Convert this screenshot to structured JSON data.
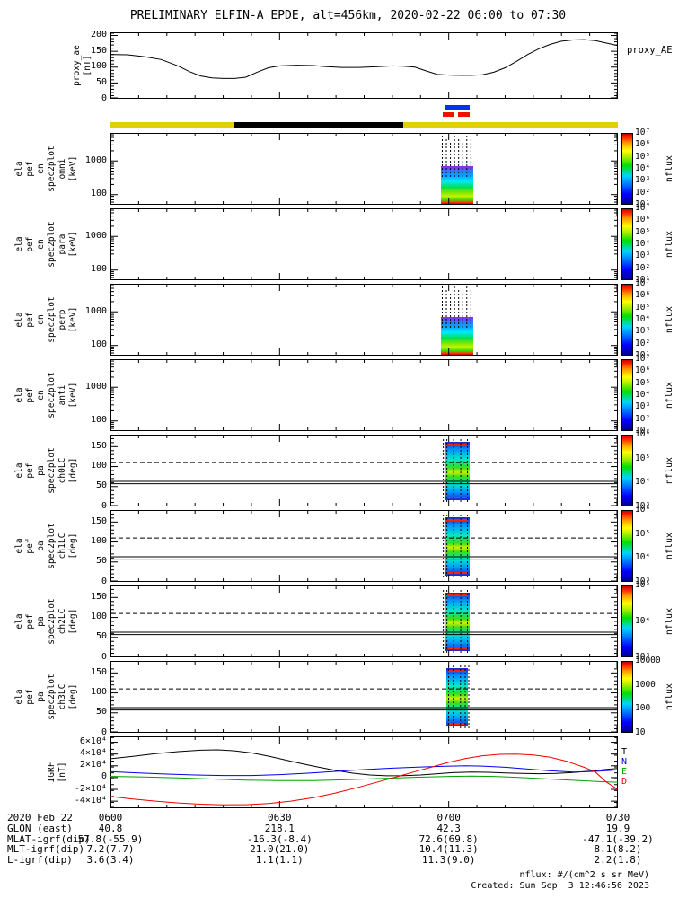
{
  "title": "PRELIMINARY ELFIN-A EPDE, alt=456km, 2020-02-22 06:00 to 07:30",
  "time_axis": {
    "range_min": [
      0,
      90
    ],
    "major_ticks": [
      {
        "min": 0,
        "label": "0600"
      },
      {
        "min": 30,
        "label": "0630"
      },
      {
        "min": 60,
        "label": "0700"
      },
      {
        "min": 90,
        "label": "0730"
      }
    ],
    "minor_step_min": 5
  },
  "status_bars": {
    "fast_blue": {
      "color": "#0033ee",
      "t_min": [
        59.3,
        63.7
      ]
    },
    "fast_red": {
      "color": "#ee1100",
      "segments_t_min": [
        [
          59.0,
          60.9
        ],
        [
          61.6,
          63.7
        ]
      ]
    },
    "survey_yellow": {
      "color": "#e0d000",
      "t_min": [
        0,
        90
      ]
    },
    "eclipse_black": {
      "color": "#000000",
      "t_min": [
        22,
        52
      ]
    }
  },
  "chart_data": [
    {
      "id": "proxy_ae",
      "type": "line",
      "label_lines": [
        "proxy_ae",
        "[nT]"
      ],
      "right_label": "proxy_AE",
      "ylim": [
        0,
        210
      ],
      "minor_step": 10,
      "yticks": [
        {
          "v": 0,
          "label": "0"
        },
        {
          "v": 50,
          "label": "50"
        },
        {
          "v": 100,
          "label": "100"
        },
        {
          "v": 150,
          "label": "150"
        },
        {
          "v": 200,
          "label": "200"
        }
      ],
      "series": [
        {
          "name": "proxy_AE",
          "color": "#000000",
          "points": [
            [
              0,
              140
            ],
            [
              3,
              139
            ],
            [
              6,
              133
            ],
            [
              9,
              124
            ],
            [
              12,
              104
            ],
            [
              14,
              86
            ],
            [
              16,
              72
            ],
            [
              18,
              66
            ],
            [
              20,
              64
            ],
            [
              22,
              64
            ],
            [
              24,
              68
            ],
            [
              26,
              84
            ],
            [
              28,
              98
            ],
            [
              30,
              104
            ],
            [
              33,
              106
            ],
            [
              36,
              105
            ],
            [
              38,
              102
            ],
            [
              41,
              99
            ],
            [
              44,
              99
            ],
            [
              47,
              101
            ],
            [
              50,
              104
            ],
            [
              52,
              103
            ],
            [
              54,
              100
            ],
            [
              56,
              88
            ],
            [
              58,
              77
            ],
            [
              60,
              75
            ],
            [
              62,
              74
            ],
            [
              64,
              74
            ],
            [
              66,
              76
            ],
            [
              68,
              84
            ],
            [
              70,
              98
            ],
            [
              72,
              118
            ],
            [
              74,
              140
            ],
            [
              76,
              158
            ],
            [
              78,
              172
            ],
            [
              80,
              182
            ],
            [
              82,
              186
            ],
            [
              84,
              187
            ],
            [
              86,
              184
            ],
            [
              88,
              176
            ],
            [
              90,
              168
            ]
          ]
        }
      ]
    },
    {
      "id": "en_omni",
      "type": "espec",
      "scale": "log",
      "label_lines": [
        "ela",
        "pef",
        "en",
        "spec2plot",
        "omni",
        "[keV]"
      ],
      "ylim_keV": [
        50,
        6800
      ],
      "yticks": [
        {
          "v": 100,
          "label": "100"
        },
        {
          "v": 1000,
          "label": "1000"
        }
      ],
      "colorbar": {
        "label": "nflux",
        "ticks": [
          "10⁷",
          "10⁶",
          "10⁵",
          "10⁴",
          "10³",
          "10²",
          "10¹"
        ]
      },
      "burst": {
        "t_min": [
          58.6,
          64.4
        ],
        "colored_energy_keV": [
          50,
          700
        ],
        "spike_top_keV": 6800
      }
    },
    {
      "id": "en_para",
      "type": "espec",
      "scale": "log",
      "label_lines": [
        "ela",
        "pef",
        "en",
        "spec2plot",
        "para",
        "[keV]"
      ],
      "ylim_keV": [
        50,
        6800
      ],
      "yticks": [
        {
          "v": 100,
          "label": "100"
        },
        {
          "v": 1000,
          "label": "1000"
        }
      ],
      "colorbar": {
        "label": "nflux",
        "ticks": [
          "10⁷",
          "10⁶",
          "10⁵",
          "10⁴",
          "10³",
          "10²",
          "10¹"
        ]
      },
      "burst": null
    },
    {
      "id": "en_perp",
      "type": "espec",
      "scale": "log",
      "label_lines": [
        "ela",
        "pef",
        "en",
        "spec2plot",
        "perp",
        "[keV]"
      ],
      "ylim_keV": [
        50,
        6800
      ],
      "yticks": [
        {
          "v": 100,
          "label": "100"
        },
        {
          "v": 1000,
          "label": "1000"
        }
      ],
      "colorbar": {
        "label": "nflux",
        "ticks": [
          "10⁷",
          "10⁶",
          "10⁵",
          "10⁴",
          "10³",
          "10²",
          "10¹"
        ]
      },
      "burst": {
        "t_min": [
          58.6,
          64.4
        ],
        "colored_energy_keV": [
          50,
          700
        ],
        "spike_top_keV": 6800
      }
    },
    {
      "id": "en_anti",
      "type": "espec",
      "scale": "log",
      "label_lines": [
        "ela",
        "pef",
        "en",
        "spec2plot",
        "anti",
        "[keV]"
      ],
      "ylim_keV": [
        50,
        6800
      ],
      "yticks": [
        {
          "v": 100,
          "label": "100"
        },
        {
          "v": 1000,
          "label": "1000"
        }
      ],
      "colorbar": {
        "label": "nflux",
        "ticks": [
          "10⁷",
          "10⁶",
          "10⁵",
          "10⁴",
          "10³",
          "10²",
          "10¹"
        ]
      },
      "burst": null
    },
    {
      "id": "pa_ch0lc",
      "type": "paspec",
      "label_lines": [
        "ela",
        "pef",
        "pa",
        "spec2plot",
        "ch0LC",
        "[deg]"
      ],
      "ylim_deg": [
        0,
        180
      ],
      "yticks": [
        {
          "v": 0,
          "label": "0"
        },
        {
          "v": 50,
          "label": "50"
        },
        {
          "v": 100,
          "label": "100"
        },
        {
          "v": 150,
          "label": "150"
        }
      ],
      "losscone_lines": {
        "solid_deg": [
          57,
          63
        ],
        "dashed_deg": [
          110
        ]
      },
      "colorbar": {
        "label": "nflux",
        "ticks": [
          "10⁶",
          "10⁵",
          "10⁴",
          "10³"
        ]
      },
      "burst": {
        "t_min": [
          59.2,
          63.8
        ],
        "pa_deg": [
          15,
          162
        ]
      }
    },
    {
      "id": "pa_ch1lc",
      "type": "paspec",
      "label_lines": [
        "ela",
        "pef",
        "pa",
        "spec2plot",
        "ch1LC",
        "[deg]"
      ],
      "ylim_deg": [
        0,
        180
      ],
      "yticks": [
        {
          "v": 0,
          "label": "0"
        },
        {
          "v": 50,
          "label": "50"
        },
        {
          "v": 100,
          "label": "100"
        },
        {
          "v": 150,
          "label": "150"
        }
      ],
      "losscone_lines": {
        "solid_deg": [
          57,
          63
        ],
        "dashed_deg": [
          110
        ]
      },
      "colorbar": {
        "label": "nflux",
        "ticks": [
          "10⁶",
          "10⁵",
          "10⁴",
          "10³"
        ]
      },
      "burst": {
        "t_min": [
          59.2,
          63.8
        ],
        "pa_deg": [
          15,
          162
        ]
      }
    },
    {
      "id": "pa_ch2lc",
      "type": "paspec",
      "label_lines": [
        "ela",
        "pef",
        "pa",
        "spec2plot",
        "ch2LC",
        "[deg]"
      ],
      "ylim_deg": [
        0,
        180
      ],
      "yticks": [
        {
          "v": 0,
          "label": "0"
        },
        {
          "v": 50,
          "label": "50"
        },
        {
          "v": 100,
          "label": "100"
        },
        {
          "v": 150,
          "label": "150"
        }
      ],
      "losscone_lines": {
        "solid_deg": [
          57,
          63
        ],
        "dashed_deg": [
          110
        ]
      },
      "colorbar": {
        "label": "nflux",
        "ticks": [
          "10⁵",
          "10⁴",
          "10³"
        ]
      },
      "burst": {
        "t_min": [
          59.2,
          63.8
        ],
        "pa_deg": [
          15,
          162
        ]
      }
    },
    {
      "id": "pa_ch3lc",
      "type": "paspec",
      "label_lines": [
        "ela",
        "pef",
        "pa",
        "spec2plot",
        "ch3LC",
        "[deg]"
      ],
      "ylim_deg": [
        0,
        180
      ],
      "yticks": [
        {
          "v": 0,
          "label": "0"
        },
        {
          "v": 50,
          "label": "50"
        },
        {
          "v": 100,
          "label": "100"
        },
        {
          "v": 150,
          "label": "150"
        }
      ],
      "losscone_lines": {
        "solid_deg": [
          57,
          63
        ],
        "dashed_deg": [
          110
        ]
      },
      "colorbar": {
        "label": "nflux",
        "ticks": [
          "10000",
          "1000",
          "100",
          "10"
        ]
      },
      "burst": {
        "t_min": [
          59.5,
          63.4
        ],
        "pa_deg": [
          15,
          162
        ]
      }
    },
    {
      "id": "igrf",
      "type": "line",
      "label_lines": [
        "IGRF",
        "[nT]"
      ],
      "ylim": [
        -52000,
        70000
      ],
      "minor_step": 10000,
      "yticks": [
        {
          "v": 60000,
          "label": "6×10⁴"
        },
        {
          "v": 40000,
          "label": "4×10⁴"
        },
        {
          "v": 20000,
          "label": "2×10⁴"
        },
        {
          "v": 0,
          "label": "0"
        },
        {
          "v": -20000,
          "label": "-2×10⁴"
        },
        {
          "v": -40000,
          "label": "-4×10⁴"
        }
      ],
      "legend": true,
      "series": [
        {
          "name": "T",
          "color": "#000000",
          "points": [
            [
              0,
              32000
            ],
            [
              4,
              36000
            ],
            [
              8,
              40500
            ],
            [
              12,
              44000
            ],
            [
              16,
              46500
            ],
            [
              19,
              47200
            ],
            [
              22,
              45500
            ],
            [
              25,
              42000
            ],
            [
              28,
              36500
            ],
            [
              31,
              30000
            ],
            [
              34,
              23500
            ],
            [
              37,
              17500
            ],
            [
              40,
              12000
            ],
            [
              43,
              7500
            ],
            [
              46,
              4500
            ],
            [
              49,
              3000
            ],
            [
              52,
              3200
            ],
            [
              55,
              4500
            ],
            [
              58,
              6500
            ],
            [
              61,
              8500
            ],
            [
              64,
              9500
            ],
            [
              67,
              9000
            ],
            [
              70,
              8000
            ],
            [
              73,
              7000
            ],
            [
              76,
              6500
            ],
            [
              79,
              7000
            ],
            [
              82,
              8500
            ],
            [
              85,
              11000
            ],
            [
              88,
              14000
            ],
            [
              90,
              15500
            ]
          ]
        },
        {
          "name": "N",
          "color": "#0000ee",
          "points": [
            [
              0,
              10000
            ],
            [
              5,
              8000
            ],
            [
              10,
              6000
            ],
            [
              15,
              4500
            ],
            [
              20,
              3500
            ],
            [
              25,
              3500
            ],
            [
              30,
              5000
            ],
            [
              35,
              7500
            ],
            [
              40,
              10500
            ],
            [
              45,
              13500
            ],
            [
              50,
              16000
            ],
            [
              55,
              18000
            ],
            [
              60,
              19500
            ],
            [
              63,
              20000
            ],
            [
              66,
              19500
            ],
            [
              70,
              17500
            ],
            [
              74,
              14500
            ],
            [
              78,
              11500
            ],
            [
              82,
              9500
            ],
            [
              86,
              10500
            ],
            [
              90,
              13000
            ]
          ]
        },
        {
          "name": "E",
          "color": "#00a000",
          "points": [
            [
              0,
              2000
            ],
            [
              6,
              1000
            ],
            [
              12,
              -500
            ],
            [
              18,
              -2500
            ],
            [
              24,
              -4200
            ],
            [
              30,
              -5200
            ],
            [
              36,
              -5000
            ],
            [
              42,
              -3500
            ],
            [
              48,
              -1500
            ],
            [
              54,
              500
            ],
            [
              60,
              2000
            ],
            [
              64,
              2500
            ],
            [
              68,
              2000
            ],
            [
              72,
              500
            ],
            [
              76,
              -1500
            ],
            [
              80,
              -3500
            ],
            [
              84,
              -5500
            ],
            [
              87,
              -7000
            ],
            [
              90,
              -8000
            ]
          ]
        },
        {
          "name": "D",
          "color": "#ee0000",
          "points": [
            [
              0,
              -32000
            ],
            [
              4,
              -36500
            ],
            [
              8,
              -40000
            ],
            [
              12,
              -43000
            ],
            [
              16,
              -45200
            ],
            [
              20,
              -46200
            ],
            [
              24,
              -46000
            ],
            [
              28,
              -44000
            ],
            [
              32,
              -40000
            ],
            [
              36,
              -34000
            ],
            [
              40,
              -26000
            ],
            [
              44,
              -16500
            ],
            [
              48,
              -6000
            ],
            [
              51,
              2000
            ],
            [
              54,
              10000
            ],
            [
              57,
              18000
            ],
            [
              60,
              26000
            ],
            [
              63,
              32500
            ],
            [
              66,
              37000
            ],
            [
              69,
              39500
            ],
            [
              72,
              40000
            ],
            [
              75,
              38500
            ],
            [
              78,
              34500
            ],
            [
              81,
              27500
            ],
            [
              84,
              17500
            ],
            [
              86,
              9500
            ],
            [
              88,
              -8000
            ],
            [
              90,
              -20000
            ]
          ]
        }
      ]
    }
  ],
  "bottom_table": {
    "date": "2020 Feb 22",
    "rows": [
      {
        "label": "GLON (east)",
        "values": [
          "40.8",
          "218.1",
          "42.3",
          "19.9"
        ]
      },
      {
        "label": "MLAT-igrf(dip)",
        "values": [
          "57.8(-55.9)",
          "-16.3(-8.4)",
          "72.6(69.8)",
          "-47.1(-39.2)"
        ]
      },
      {
        "label": "MLT-igrf(dip)",
        "values": [
          "7.2(7.7)",
          "21.0(21.0)",
          "10.4(11.3)",
          "8.1(8.2)"
        ]
      },
      {
        "label": "L-igrf(dip)",
        "values": [
          "3.6(3.4)",
          "1.1(1.1)",
          "11.3(9.0)",
          "2.2(1.8)"
        ]
      }
    ]
  },
  "footer": {
    "flux_units": "nflux: #/(cm^2 s sr MeV)",
    "created": "Created: Sun Sep  3 12:46:56 2023"
  }
}
